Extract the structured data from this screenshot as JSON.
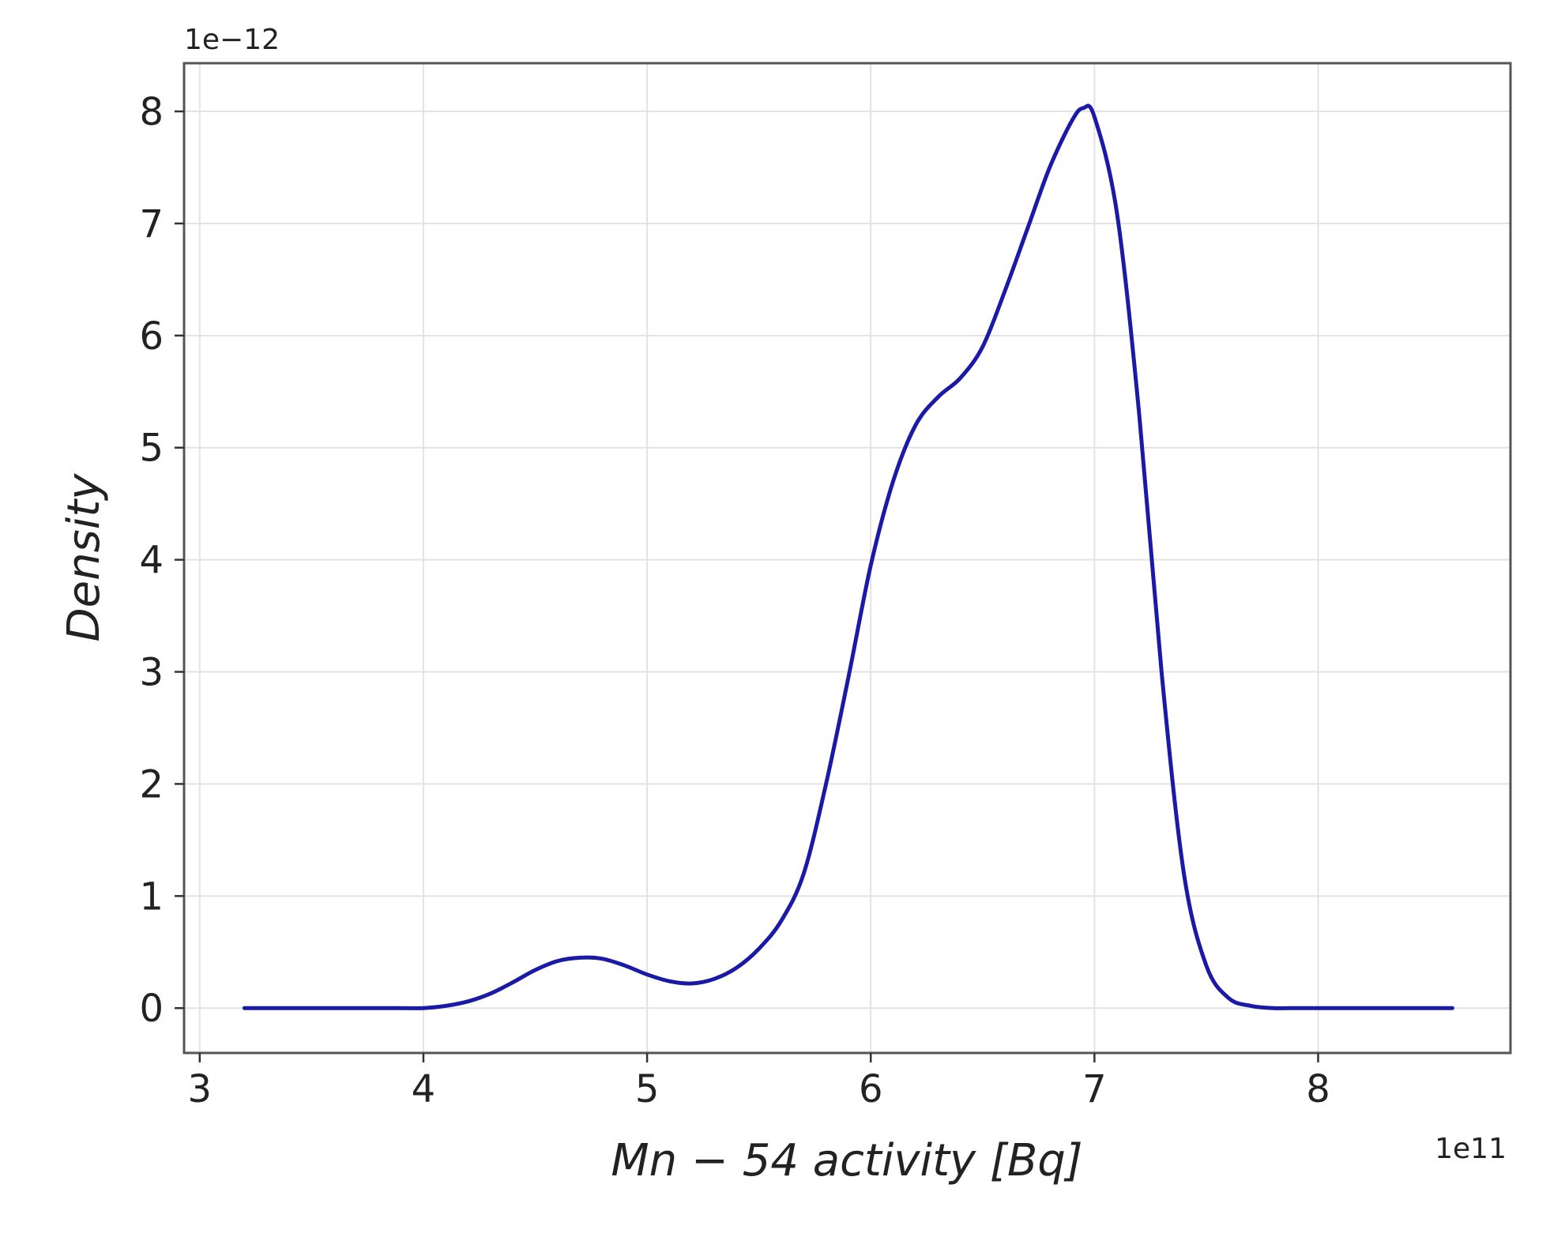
{
  "chart_data": {
    "type": "line",
    "xlabel": "Mn − 54 activity [Bq]",
    "ylabel": "Density",
    "x_offset_label": "1e11",
    "y_offset_label": "1e−12",
    "xlim": [
      2.93,
      8.86
    ],
    "ylim": [
      -0.4,
      8.43
    ],
    "xticks": [
      3,
      4,
      5,
      6,
      7,
      8
    ],
    "yticks": [
      0,
      1,
      2,
      3,
      4,
      5,
      6,
      7,
      8
    ],
    "xtick_labels": [
      "3",
      "4",
      "5",
      "6",
      "7",
      "8"
    ],
    "ytick_labels": [
      "0",
      "1",
      "2",
      "3",
      "4",
      "5",
      "6",
      "7",
      "8"
    ],
    "grid": true,
    "line_color": "#1a1aa6",
    "series": [
      {
        "x": [
          3.2,
          3.6,
          3.9,
          4.0,
          4.1,
          4.2,
          4.3,
          4.4,
          4.5,
          4.6,
          4.7,
          4.8,
          4.9,
          5.0,
          5.1,
          5.2,
          5.3,
          5.4,
          5.5,
          5.6,
          5.7,
          5.8,
          5.9,
          6.0,
          6.1,
          6.2,
          6.3,
          6.4,
          6.5,
          6.6,
          6.7,
          6.8,
          6.9,
          6.95,
          7.0,
          7.1,
          7.2,
          7.3,
          7.4,
          7.5,
          7.6,
          7.7,
          7.8,
          7.9,
          8.0,
          8.2,
          8.4,
          8.6
        ],
        "y": [
          0.0,
          0.0,
          0.0,
          0.0,
          0.02,
          0.06,
          0.13,
          0.23,
          0.34,
          0.42,
          0.45,
          0.44,
          0.38,
          0.3,
          0.24,
          0.22,
          0.26,
          0.36,
          0.53,
          0.78,
          1.2,
          2.0,
          2.95,
          3.95,
          4.7,
          5.2,
          5.45,
          5.62,
          5.9,
          6.4,
          6.95,
          7.5,
          7.92,
          8.03,
          7.95,
          7.1,
          5.3,
          3.0,
          1.2,
          0.38,
          0.09,
          0.02,
          0.0,
          0.0,
          0.0,
          0.0,
          0.0,
          0.0
        ]
      }
    ]
  }
}
